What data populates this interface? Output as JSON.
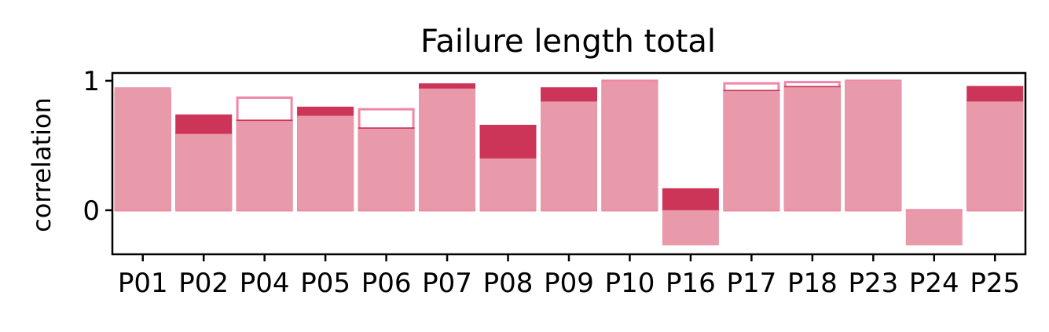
{
  "chart_data": {
    "type": "bar",
    "title": "Failure length total",
    "xlabel": "",
    "ylabel": "correlation",
    "ylim": [
      -0.34,
      1.06
    ],
    "yticks": [
      0,
      1
    ],
    "grid": false,
    "legend": "none",
    "categories": [
      "P01",
      "P02",
      "P04",
      "P05",
      "P06",
      "P07",
      "P08",
      "P09",
      "P10",
      "P16",
      "P17",
      "P18",
      "P23",
      "P24",
      "P25"
    ],
    "series": [
      {
        "values": [
          0.93,
          0.6,
          0.87,
          0.75,
          0.78,
          0.95,
          0.41,
          0.85,
          1.0,
          0.0,
          0.98,
          0.99,
          1.0,
          0.0,
          0.85
        ]
      },
      {
        "values": [
          0.91,
          0.74,
          0.7,
          0.8,
          0.64,
          0.98,
          0.66,
          0.95,
          0.99,
          0.17,
          0.93,
          0.96,
          0.99,
          0.0,
          0.96
        ]
      },
      {
        "values": [
          0.95,
          0.59,
          0.69,
          0.73,
          0.63,
          0.94,
          0.4,
          0.84,
          0.99,
          -0.27,
          0.92,
          0.95,
          1.0,
          -0.27,
          0.84
        ]
      }
    ],
    "colors": {
      "fill": "#e899aa",
      "dark": "#cc3558",
      "edge": "#ee88a6"
    }
  }
}
